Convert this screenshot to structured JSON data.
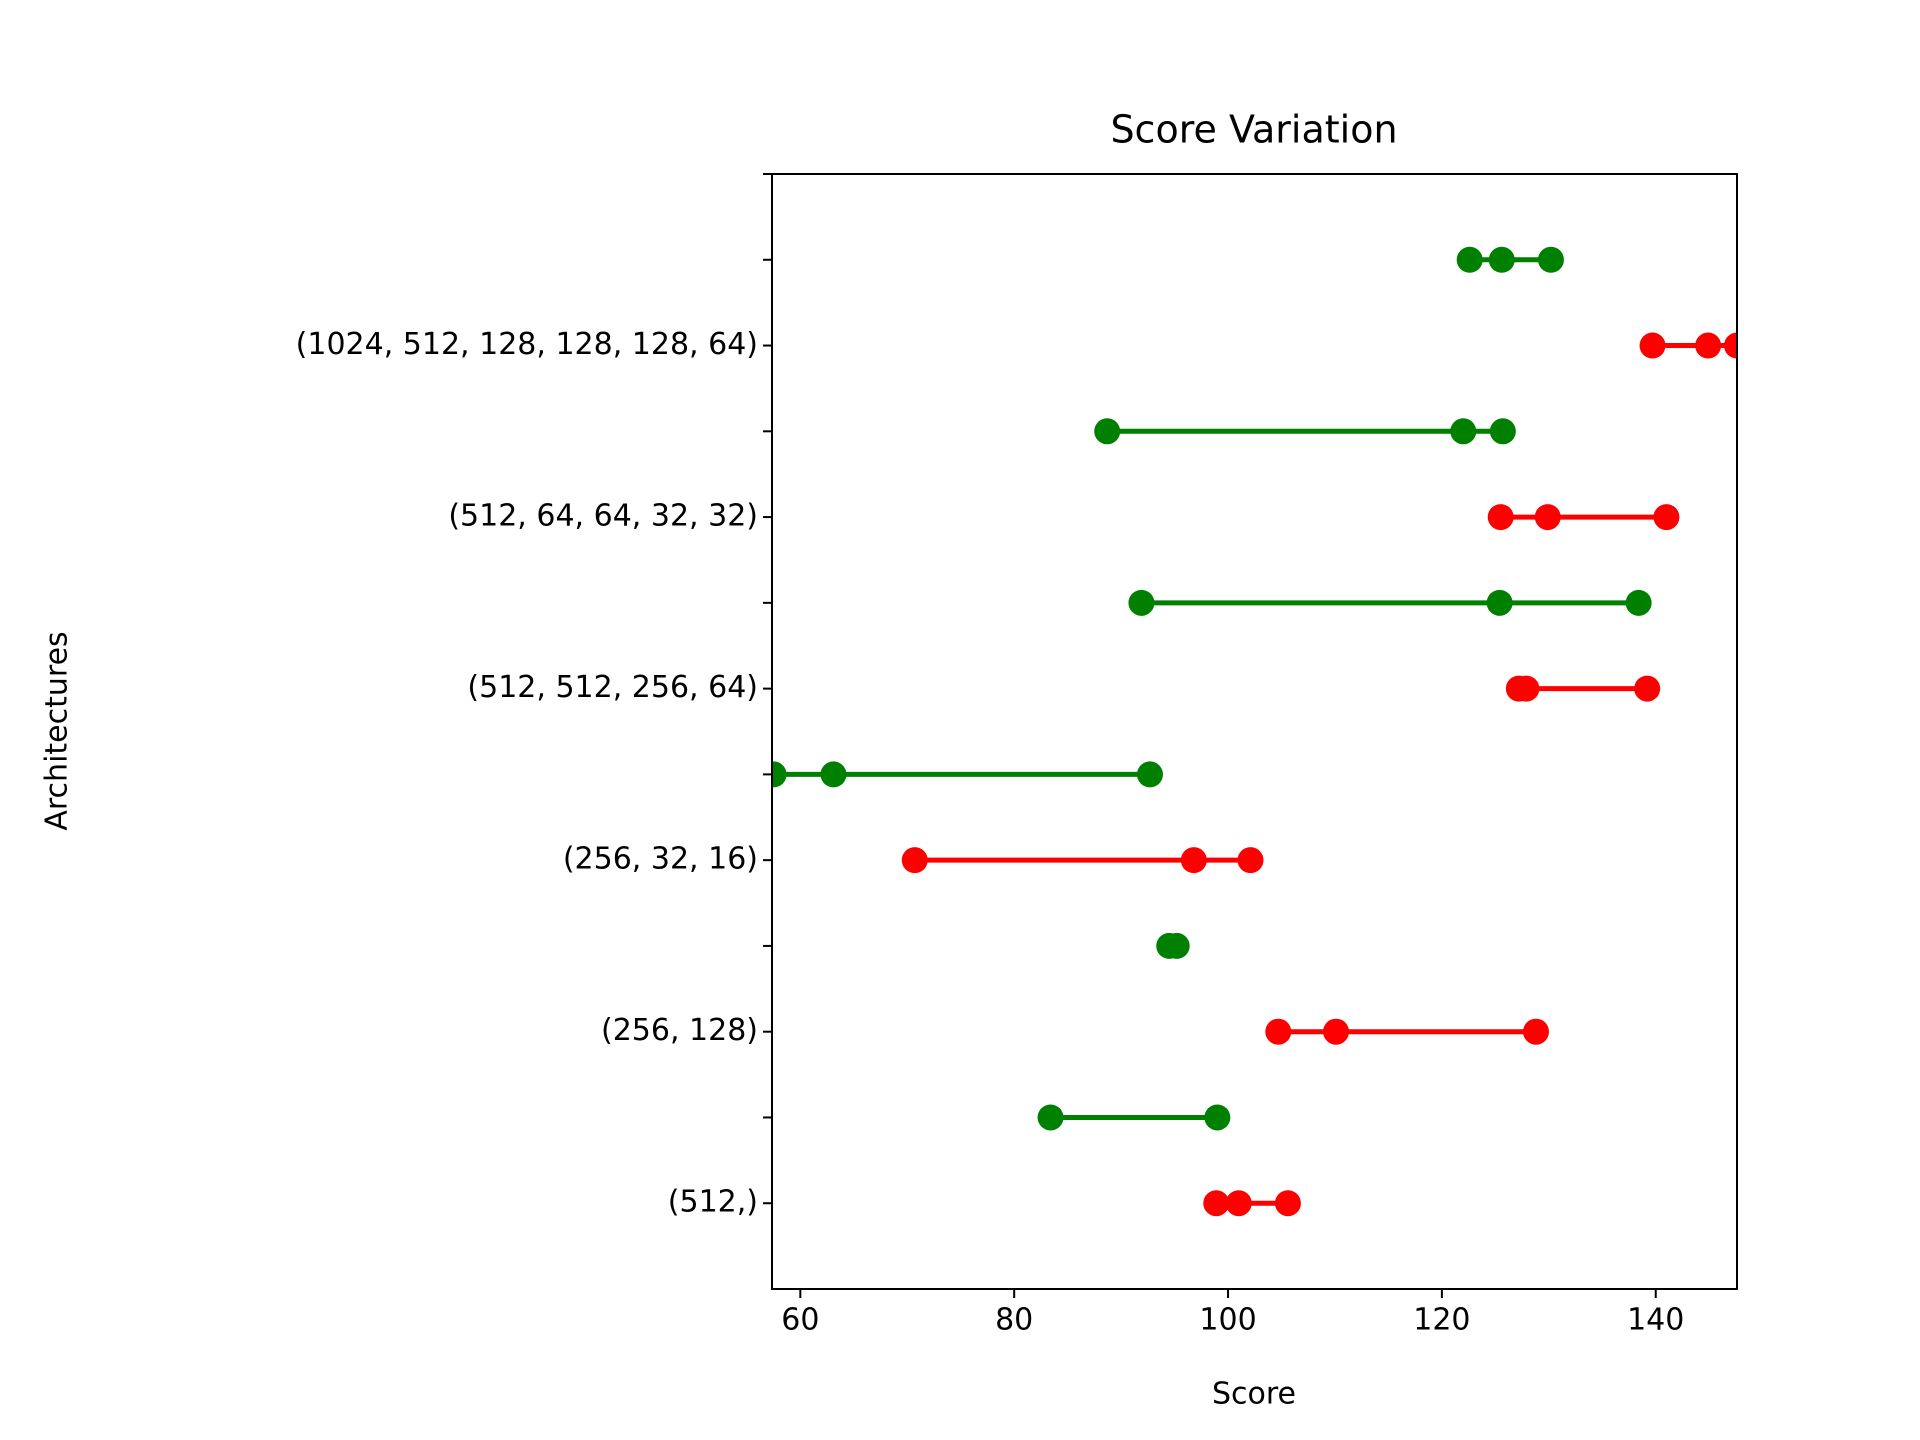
{
  "chart_data": {
    "type": "dotrange",
    "title": "Score Variation",
    "xlabel": "Score",
    "ylabel": "Architectures",
    "categories": [
      "(512,)",
      null,
      "(256, 128)",
      null,
      "(256, 32, 16)",
      null,
      "(512, 512, 256, 64)",
      null,
      "(512, 64, 64, 32, 32)",
      null,
      "(1024, 512, 128, 128, 128, 64)",
      null,
      null
    ],
    "series": [
      {
        "color": "#ff0000",
        "values": [
          [
            98.9,
            101.0,
            105.6
          ],
          null,
          [
            104.7,
            110.1,
            128.8
          ],
          null,
          [
            70.7,
            96.8,
            102.1
          ],
          null,
          [
            127.2,
            127.9,
            139.2
          ],
          null,
          [
            125.5,
            129.9,
            141.0
          ],
          null,
          [
            139.7,
            144.9,
            147.6
          ],
          null,
          null
        ]
      },
      {
        "color": "#008000",
        "values": [
          null,
          [
            83.4,
            99.0
          ],
          null,
          [
            94.5,
            95.2
          ],
          null,
          [
            57.5,
            63.1,
            92.7
          ],
          null,
          [
            91.9,
            125.4,
            138.4
          ],
          null,
          [
            88.7,
            122.0,
            125.7
          ],
          null,
          [
            122.6,
            125.6,
            130.2
          ],
          null
        ]
      }
    ],
    "xlim": [
      57.35,
      147.6
    ],
    "xticks": [
      60,
      80,
      100,
      120,
      140
    ],
    "ylim": [
      -1,
      12
    ]
  }
}
